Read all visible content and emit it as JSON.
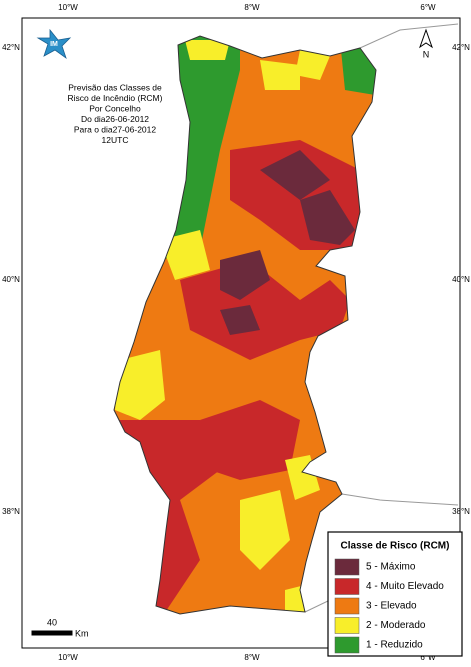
{
  "grid_labels": {
    "longitude": [
      "10°W",
      "8°W",
      "6°W"
    ],
    "latitude": [
      "42°N",
      "40°N",
      "38°N"
    ]
  },
  "logo": "IM",
  "north": "N",
  "title_lines": [
    "Previsão das Classes de",
    "Risco de Incêndio (RCM)",
    "Por Concelho",
    "Do dia26-06-2012",
    "Para o dia27-06-2012",
    "12UTC"
  ],
  "scale": {
    "value": "40",
    "unit": "Km"
  },
  "legend": {
    "title": "Classe de Risco (RCM)",
    "items": [
      {
        "label": "5 - Máximo",
        "color": "#6b2a3c"
      },
      {
        "label": "4 - Muito Elevado",
        "color": "#c8282a"
      },
      {
        "label": "3 - Elevado",
        "color": "#ee7a12"
      },
      {
        "label": "2 - Moderado",
        "color": "#f8ee2a"
      },
      {
        "label": "1 - Reduzido",
        "color": "#2e9a2e"
      }
    ]
  }
}
